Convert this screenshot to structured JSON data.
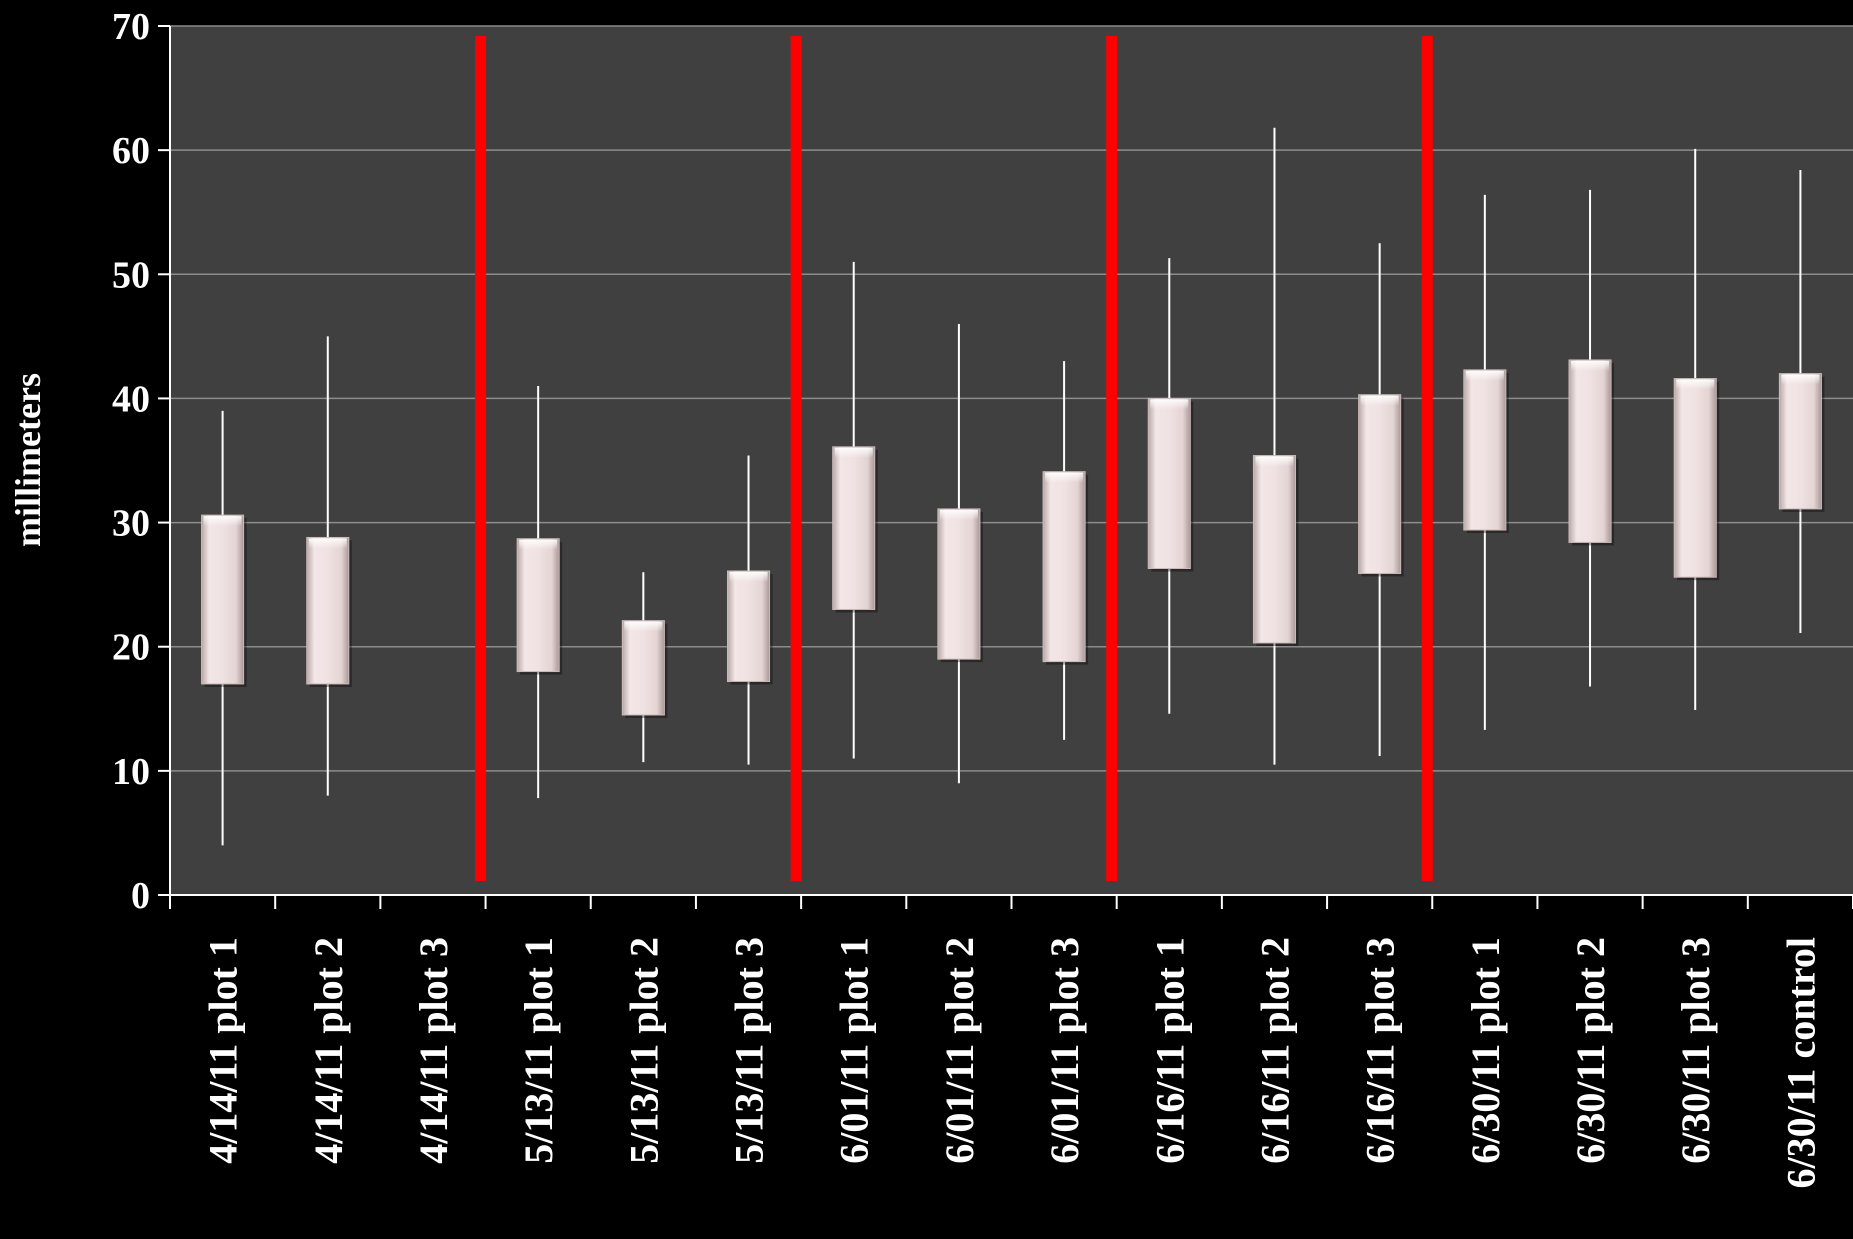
{
  "chart_data": {
    "type": "box",
    "title": "",
    "xlabel": "",
    "ylabel": "millimeters",
    "ylim": [
      0,
      70
    ],
    "yticks": [
      0,
      10,
      20,
      30,
      40,
      50,
      60,
      70
    ],
    "grid": true,
    "legend": "none",
    "colors": {
      "background": "#000000",
      "plot_area": "#404040",
      "gridline": "#8c8c8c",
      "box_fill": "#eadada",
      "whisker": "#ffffff",
      "separator": "#ff0000",
      "text": "#ffffff"
    },
    "categories": [
      "4/14/11 plot 1",
      "4/14/11 plot 2",
      "4/14/11 plot 3",
      "5/13/11 plot 1",
      "5/13/11 plot 2",
      "5/13/11 plot 3",
      "6/01/11 plot 1",
      "6/01/11 plot 2",
      "6/01/11 plot 3",
      "6/16/11 plot 1",
      "6/16/11 plot 2",
      "6/16/11 plot 3",
      "6/30/11 plot 1",
      "6/30/11 plot 2",
      "6/30/11 plot 3",
      "6/30/11 control"
    ],
    "series": [
      {
        "boxes": [
          {
            "min": 4,
            "q1": 17,
            "q3": 30.6,
            "max": 39
          },
          {
            "min": 8,
            "q1": 17,
            "q3": 28.8,
            "max": 45
          },
          null,
          {
            "min": 7.8,
            "q1": 18,
            "q3": 28.7,
            "max": 41
          },
          {
            "min": 10.7,
            "q1": 14.5,
            "q3": 22.1,
            "max": 26
          },
          {
            "min": 10.5,
            "q1": 17.2,
            "q3": 26.1,
            "max": 35.4
          },
          {
            "min": 11,
            "q1": 23,
            "q3": 36.1,
            "max": 51
          },
          {
            "min": 9,
            "q1": 19,
            "q3": 31.1,
            "max": 46
          },
          {
            "min": 12.5,
            "q1": 18.8,
            "q3": 34.1,
            "max": 43
          },
          {
            "min": 14.6,
            "q1": 26.3,
            "q3": 40,
            "max": 51.3
          },
          {
            "min": 10.5,
            "q1": 20.3,
            "q3": 35.4,
            "max": 61.8
          },
          {
            "min": 11.2,
            "q1": 25.9,
            "q3": 40.3,
            "max": 52.5
          },
          {
            "min": 13.3,
            "q1": 29.4,
            "q3": 42.3,
            "max": 56.4
          },
          {
            "min": 16.8,
            "q1": 28.4,
            "q3": 43.1,
            "max": 56.8
          },
          {
            "min": 14.9,
            "q1": 25.6,
            "q3": 41.6,
            "max": 60.1
          },
          {
            "min": 21.1,
            "q1": 31.1,
            "q3": 42,
            "max": 58.4
          }
        ]
      }
    ],
    "separators_after_category_index": [
      2,
      5,
      8,
      11
    ]
  }
}
